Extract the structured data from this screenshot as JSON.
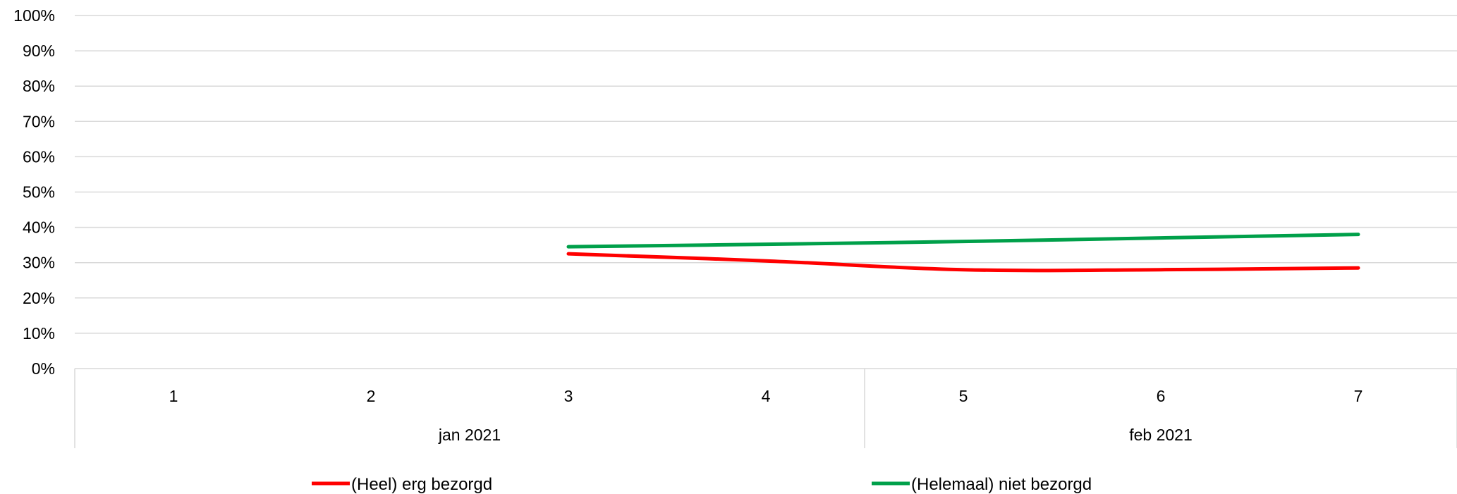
{
  "chart_data": {
    "type": "line",
    "y_ticks": [
      "0%",
      "10%",
      "20%",
      "30%",
      "40%",
      "50%",
      "60%",
      "70%",
      "80%",
      "90%",
      "100%"
    ],
    "ylim": [
      0,
      100
    ],
    "grid": true,
    "categories": [
      "1",
      "2",
      "3",
      "4",
      "5",
      "6",
      "7"
    ],
    "groups": [
      {
        "label": "jan 2021",
        "categories": [
          "1",
          "2",
          "3",
          "4"
        ]
      },
      {
        "label": "feb 2021",
        "categories": [
          "5",
          "6",
          "7"
        ]
      }
    ],
    "series": [
      {
        "name": "(Heel) erg bezorgd",
        "color": "#ff0000",
        "values": [
          null,
          null,
          32.5,
          30.5,
          28,
          28,
          28.5
        ]
      },
      {
        "name": "(Helemaal) niet bezorgd",
        "color": "#00a04a",
        "values": [
          null,
          null,
          34.5,
          35.2,
          36,
          37,
          38
        ]
      }
    ],
    "legend_position": "bottom",
    "gridline_color": "#d9d9d9"
  }
}
